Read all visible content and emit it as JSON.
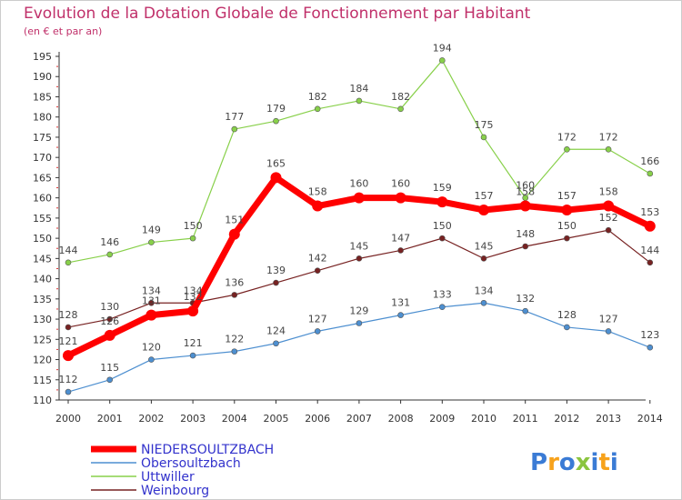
{
  "chart_data": {
    "type": "line",
    "title": "Evolution de la Dotation Globale de Fonctionnement par Habitant",
    "subtitle": "(en € et par an)",
    "x": [
      "2000",
      "2001",
      "2002",
      "2003",
      "2004",
      "2005",
      "2006",
      "2007",
      "2008",
      "2009",
      "2010",
      "2011",
      "2012",
      "2013",
      "2014"
    ],
    "ylim": [
      110,
      195
    ],
    "yticks": [
      110,
      115,
      120,
      125,
      130,
      135,
      140,
      145,
      150,
      155,
      160,
      165,
      170,
      175,
      180,
      185,
      190,
      195
    ],
    "grid": false,
    "series": [
      {
        "name": "NIEDERSOULTZBACH",
        "color": "#ff0000",
        "values": [
          121,
          126,
          131,
          132,
          151,
          165,
          158,
          160,
          160,
          159,
          157,
          158,
          157,
          158,
          153
        ]
      },
      {
        "name": "Obersoultzbach",
        "color": "#4d8fd0",
        "values": [
          112,
          115,
          120,
          121,
          122,
          124,
          127,
          129,
          131,
          133,
          134,
          132,
          128,
          127,
          123
        ]
      },
      {
        "name": "Uttwiller",
        "color": "#88d04a",
        "values": [
          144,
          146,
          149,
          150,
          177,
          179,
          182,
          184,
          182,
          194,
          175,
          160,
          172,
          172,
          166
        ]
      },
      {
        "name": "Weinbourg",
        "color": "#772222",
        "values": [
          128,
          130,
          134,
          134,
          136,
          139,
          142,
          145,
          147,
          150,
          145,
          148,
          150,
          152,
          144
        ]
      }
    ]
  },
  "logo": {
    "text": "Proxiti",
    "colors": [
      "#3a7bd5",
      "#f7a21b",
      "#3a7bd5",
      "#8bc53f",
      "#3a7bd5",
      "#f7a21b",
      "#3a7bd5"
    ]
  }
}
